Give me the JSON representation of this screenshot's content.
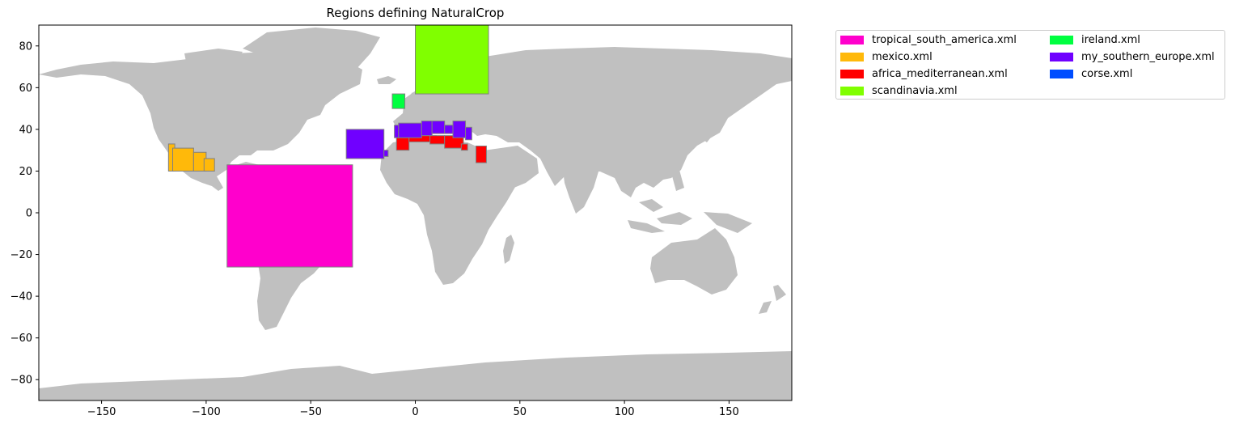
{
  "chart_data": {
    "type": "map",
    "title": "Regions defining NaturalCrop",
    "xlabel": "",
    "ylabel": "",
    "xlim": [
      -180,
      180
    ],
    "ylim": [
      -90,
      90
    ],
    "xticks": [
      -150,
      -100,
      -50,
      0,
      50,
      100,
      150
    ],
    "yticks": [
      -80,
      -60,
      -40,
      -20,
      0,
      20,
      40,
      60,
      80
    ],
    "land_color": "#c0c0c0",
    "legend_position": "outside upper right, 2 columns",
    "series": [
      {
        "name": "tropical_south_america.xml",
        "color": "#ff00cc",
        "regions": [
          [
            -90,
            -26,
            -30,
            23
          ]
        ]
      },
      {
        "name": "mexico.xml",
        "color": "#ffb90a",
        "regions": [
          [
            -118,
            20,
            -115,
            33
          ],
          [
            -116,
            20,
            -106,
            31
          ],
          [
            -106,
            20,
            -100,
            29
          ],
          [
            -101,
            20,
            -96,
            26
          ]
        ]
      },
      {
        "name": "africa_mediterranean.xml",
        "color": "#ff0000",
        "regions": [
          [
            -9,
            30,
            -3,
            36
          ],
          [
            -3,
            34,
            10,
            37
          ],
          [
            7,
            33,
            14,
            37
          ],
          [
            14,
            31,
            23,
            37
          ],
          [
            22,
            30,
            25,
            33
          ],
          [
            29,
            24,
            34,
            32
          ]
        ]
      },
      {
        "name": "scandinavia.xml",
        "color": "#80ff00",
        "regions": [
          [
            0,
            57,
            35,
            90
          ]
        ]
      },
      {
        "name": "ireland.xml",
        "color": "#00ff40",
        "regions": [
          [
            -11,
            50,
            -5,
            57
          ]
        ]
      },
      {
        "name": "my_southern_europe.xml",
        "color": "#7000ff",
        "regions": [
          [
            -33,
            26,
            -15,
            40
          ],
          [
            -15,
            27,
            -13,
            30
          ],
          [
            -10,
            36,
            -8,
            42
          ],
          [
            -8,
            36,
            3,
            43
          ],
          [
            3,
            37,
            8,
            44
          ],
          [
            8,
            38,
            14,
            44
          ],
          [
            14,
            38,
            18,
            42
          ],
          [
            18,
            36,
            24,
            44
          ],
          [
            24,
            35,
            27,
            41
          ]
        ]
      },
      {
        "name": "corse.xml",
        "color": "#004dff",
        "regions": []
      }
    ]
  }
}
